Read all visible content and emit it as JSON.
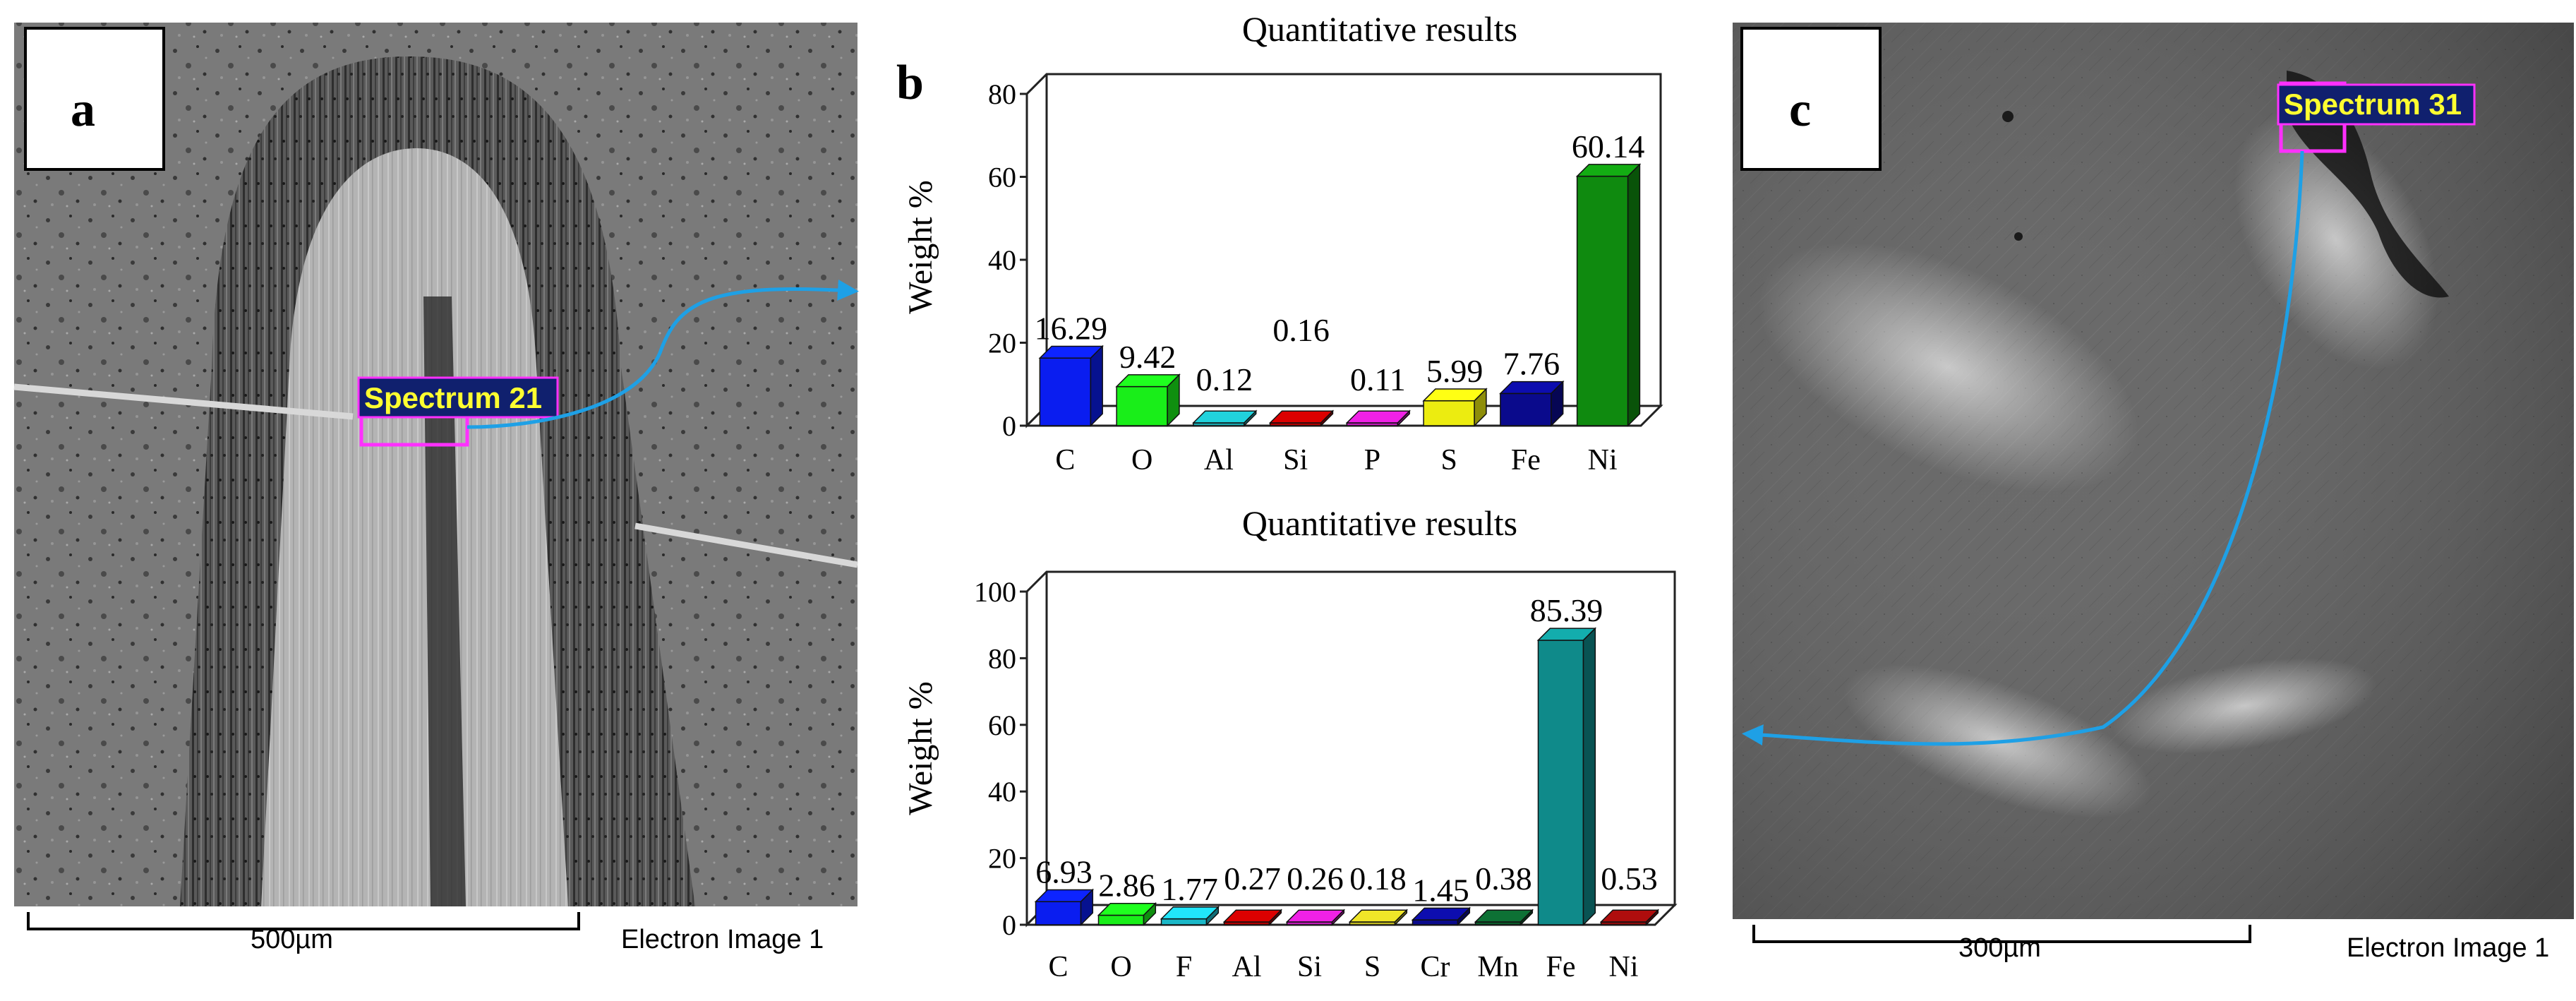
{
  "panel_labels": {
    "a": "a",
    "b": "b",
    "c": "c"
  },
  "panel_a": {
    "spectrum_label": "Spectrum 21",
    "scale_bar": "500µm",
    "caption": "Electron Image 1"
  },
  "panel_c": {
    "spectrum_label": "Spectrum 31",
    "scale_bar": "300µm",
    "caption": "Electron Image 1"
  },
  "chart_data": [
    {
      "type": "bar",
      "title": "Quantitative results",
      "xlabel": "",
      "ylabel": "Weight %",
      "ylim": [
        0,
        80
      ],
      "yticks": [
        0,
        20,
        40,
        60,
        80
      ],
      "categories": [
        "C",
        "O",
        "Al",
        "Si",
        "P",
        "S",
        "Fe",
        "Ni"
      ],
      "values": [
        16.29,
        9.42,
        0.12,
        0.16,
        0.11,
        5.99,
        7.76,
        60.14
      ],
      "value_labels": [
        "16.29",
        "9.42",
        "0.12",
        "0.16",
        "0.11",
        "5.99",
        "7.76",
        "60.14"
      ],
      "colors": [
        "#0a1df0",
        "#19ee19",
        "#1aa8b0",
        "#b00000",
        "#c01ab8",
        "#ecec10",
        "#0a0a8c",
        "#0f8a0f"
      ],
      "legend": "none",
      "grid": false
    },
    {
      "type": "bar",
      "title": "Quantitative results",
      "xlabel": "",
      "ylabel": "Weight %",
      "ylim": [
        0,
        100
      ],
      "yticks": [
        0,
        20,
        40,
        60,
        80,
        100
      ],
      "categories": [
        "C",
        "O",
        "F",
        "Al",
        "Si",
        "S",
        "Cr",
        "Mn",
        "Fe",
        "Ni"
      ],
      "values": [
        6.93,
        2.86,
        1.77,
        0.27,
        0.26,
        0.18,
        1.45,
        0.38,
        85.39,
        0.53
      ],
      "value_labels": [
        "6.93",
        "2.86",
        "1.77",
        "0.27",
        "0.26",
        "0.18",
        "1.45",
        "0.38",
        "85.39",
        "0.53"
      ],
      "colors": [
        "#0a1df0",
        "#19ee19",
        "#1ab8c8",
        "#b00000",
        "#c01ab8",
        "#c0b820",
        "#0a0a8c",
        "#0a5a2a",
        "#0f8a8a",
        "#8c0a0a"
      ],
      "legend": "none",
      "grid": false
    }
  ]
}
